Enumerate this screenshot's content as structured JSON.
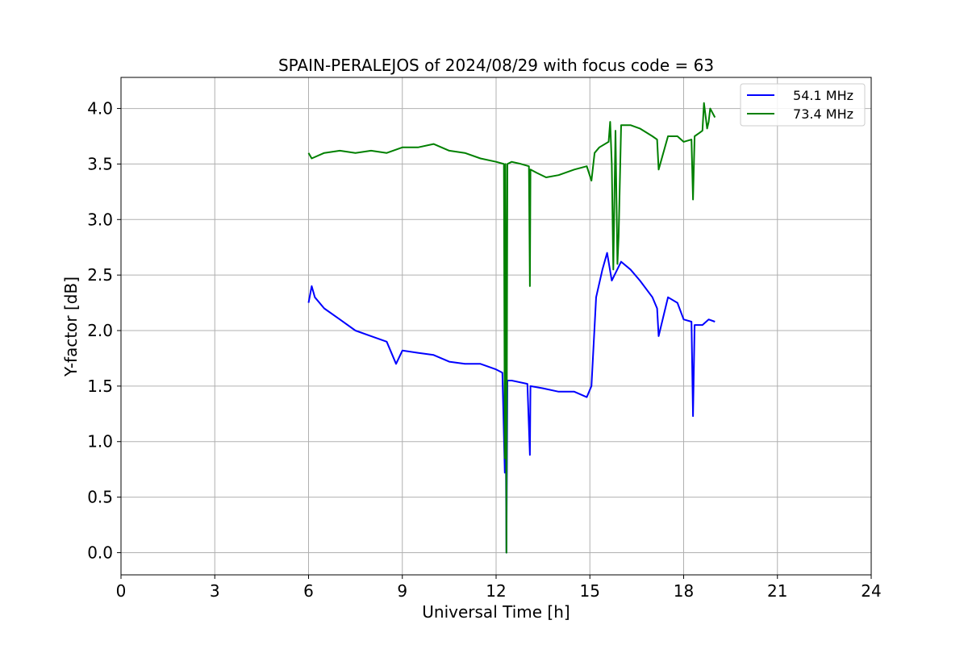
{
  "chart_data": {
    "type": "line",
    "title": "SPAIN-PERALEJOS of 2024/08/29 with focus code = 63",
    "xlabel": "Universal Time [h]",
    "ylabel": "Y-factor [dB]",
    "xlim": [
      0,
      24
    ],
    "ylim": [
      -0.2,
      4.28
    ],
    "x_ticks": [
      0,
      3,
      6,
      9,
      12,
      15,
      18,
      21,
      24
    ],
    "y_ticks": [
      0.0,
      0.5,
      1.0,
      1.5,
      2.0,
      2.5,
      3.0,
      3.5,
      4.0
    ],
    "x_tick_labels": [
      "0",
      "3",
      "6",
      "9",
      "12",
      "15",
      "18",
      "21",
      "24"
    ],
    "y_tick_labels": [
      "0.0",
      "0.5",
      "1.0",
      "1.5",
      "2.0",
      "2.5",
      "3.0",
      "3.5",
      "4.0"
    ],
    "grid": true,
    "legend_position": "top-right",
    "series": [
      {
        "name": "54.1 MHz",
        "color": "#0000ff",
        "x": [
          6.0,
          6.1,
          6.2,
          6.5,
          7.0,
          7.5,
          8.0,
          8.5,
          8.8,
          9.0,
          9.5,
          10.0,
          10.5,
          11.0,
          11.5,
          12.0,
          12.2,
          12.28,
          12.3,
          12.33,
          12.36,
          12.5,
          13.0,
          13.08,
          13.1,
          13.5,
          14.0,
          14.5,
          14.9,
          15.05,
          15.2,
          15.4,
          15.55,
          15.7,
          16.0,
          16.3,
          16.6,
          17.0,
          17.15,
          17.2,
          17.5,
          17.8,
          18.0,
          18.25,
          18.3,
          18.35,
          18.6,
          18.8,
          19.0
        ],
        "y": [
          2.25,
          2.4,
          2.3,
          2.2,
          2.1,
          2.0,
          1.95,
          1.9,
          1.7,
          1.82,
          1.8,
          1.78,
          1.72,
          1.7,
          1.7,
          1.65,
          1.62,
          0.72,
          1.6,
          0.0,
          1.55,
          1.55,
          1.52,
          0.88,
          1.5,
          1.48,
          1.45,
          1.45,
          1.4,
          1.5,
          2.3,
          2.55,
          2.7,
          2.45,
          2.62,
          2.55,
          2.45,
          2.3,
          2.2,
          1.95,
          2.3,
          2.25,
          2.1,
          2.08,
          1.23,
          2.05,
          2.05,
          2.1,
          2.08
        ]
      },
      {
        "name": "73.4 MHz",
        "color": "#008000",
        "x": [
          6.0,
          6.1,
          6.5,
          7.0,
          7.5,
          8.0,
          8.5,
          9.0,
          9.5,
          10.0,
          10.5,
          11.0,
          11.5,
          12.0,
          12.25,
          12.28,
          12.3,
          12.33,
          12.36,
          12.5,
          12.8,
          13.05,
          13.08,
          13.1,
          13.3,
          13.6,
          14.0,
          14.5,
          14.9,
          15.05,
          15.15,
          15.3,
          15.6,
          15.65,
          15.7,
          15.75,
          15.82,
          15.88,
          15.92,
          16.0,
          16.3,
          16.6,
          17.0,
          17.15,
          17.2,
          17.5,
          17.8,
          18.0,
          18.25,
          18.3,
          18.35,
          18.5,
          18.6,
          18.65,
          18.75,
          18.8,
          18.85,
          19.0
        ],
        "y": [
          3.6,
          3.55,
          3.6,
          3.62,
          3.6,
          3.62,
          3.6,
          3.65,
          3.65,
          3.68,
          3.62,
          3.6,
          3.55,
          3.52,
          3.5,
          0.85,
          3.5,
          0.0,
          3.5,
          3.52,
          3.5,
          3.48,
          2.4,
          3.45,
          3.42,
          3.38,
          3.4,
          3.45,
          3.48,
          3.35,
          3.6,
          3.65,
          3.7,
          3.88,
          3.5,
          2.55,
          3.8,
          2.6,
          2.85,
          3.85,
          3.85,
          3.82,
          3.75,
          3.72,
          3.45,
          3.75,
          3.75,
          3.7,
          3.72,
          3.18,
          3.75,
          3.78,
          3.8,
          4.05,
          3.82,
          3.88,
          4.0,
          3.92
        ]
      }
    ]
  }
}
